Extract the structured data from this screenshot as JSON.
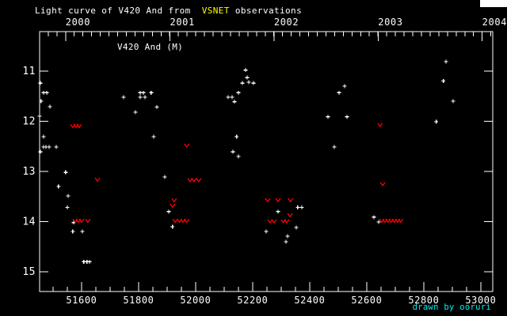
{
  "title": {
    "prefix": "Light curve of V420 And from  ",
    "highlight": "VSNET",
    "suffix": " observations",
    "text_color": "#ffffff",
    "highlight_color": "#ffff00"
  },
  "credit": {
    "text": "drawn by ooruri",
    "color": "#00eeee"
  },
  "chart_data": {
    "type": "scatter",
    "inner_label": "V420 And (M)",
    "x_axis": {
      "unit": "JD",
      "xlim": [
        51453,
        53042
      ],
      "label_ticks": [
        51600,
        51800,
        52000,
        52200,
        52400,
        52600,
        52800,
        53000
      ],
      "minor_step": 50
    },
    "top_axis": {
      "years": [
        {
          "label": "2000",
          "jd": 51544
        },
        {
          "label": "2001",
          "jd": 51910
        },
        {
          "label": "2002",
          "jd": 52275
        },
        {
          "label": "2003",
          "jd": 52640
        },
        {
          "label": "2004",
          "jd": 53005
        }
      ],
      "minor_step_days": 30.437
    },
    "y_axis": {
      "unit": "magnitude",
      "ylim": [
        10.213,
        15.394
      ],
      "label_ticks": [
        11,
        12,
        13,
        14,
        15
      ],
      "inverted_note": "fainter (larger mag) is lower"
    },
    "grid": false,
    "legend": "none",
    "series": [
      {
        "name": "observations",
        "marker": "plus",
        "color": "#ffffff",
        "points": [
          [
            51453,
            11.9
          ],
          [
            51456,
            11.24
          ],
          [
            51456,
            12.61
          ],
          [
            51458,
            11.6
          ],
          [
            51467,
            11.43
          ],
          [
            51467,
            12.31
          ],
          [
            51467,
            12.51
          ],
          [
            51475,
            12.51
          ],
          [
            51478,
            11.43
          ],
          [
            51486,
            12.51
          ],
          [
            51489,
            11.71
          ],
          [
            51511,
            12.51
          ],
          [
            51519,
            13.3
          ],
          [
            51544,
            13.02
          ],
          [
            51550,
            13.72
          ],
          [
            51553,
            13.49
          ],
          [
            51569,
            14.2
          ],
          [
            51572,
            14.02
          ],
          [
            51603,
            14.2
          ],
          [
            51608,
            14.8
          ],
          [
            51619,
            14.8
          ],
          [
            51628,
            14.8
          ],
          [
            51747,
            11.52
          ],
          [
            51789,
            11.82
          ],
          [
            51806,
            11.43
          ],
          [
            51806,
            11.52
          ],
          [
            51817,
            11.43
          ],
          [
            51822,
            11.52
          ],
          [
            51844,
            11.43
          ],
          [
            51853,
            12.31
          ],
          [
            51864,
            11.72
          ],
          [
            51892,
            13.11
          ],
          [
            51906,
            13.8
          ],
          [
            51919,
            14.1
          ],
          [
            52114,
            11.52
          ],
          [
            52128,
            11.52
          ],
          [
            52131,
            12.61
          ],
          [
            52136,
            11.61
          ],
          [
            52144,
            12.31
          ],
          [
            52150,
            11.43
          ],
          [
            52150,
            12.7
          ],
          [
            52164,
            11.24
          ],
          [
            52175,
            10.98
          ],
          [
            52181,
            11.13
          ],
          [
            52186,
            11.22
          ],
          [
            52203,
            11.24
          ],
          [
            52247,
            14.2
          ],
          [
            52289,
            13.8
          ],
          [
            52317,
            14.4
          ],
          [
            52322,
            14.29
          ],
          [
            52353,
            14.12
          ],
          [
            52358,
            13.72
          ],
          [
            52372,
            13.72
          ],
          [
            52464,
            11.91
          ],
          [
            52486,
            12.51
          ],
          [
            52503,
            11.43
          ],
          [
            52522,
            11.3
          ],
          [
            52531,
            11.91
          ],
          [
            52625,
            13.91
          ],
          [
            52642,
            14.01
          ],
          [
            52844,
            12.01
          ],
          [
            52869,
            11.2
          ],
          [
            52878,
            10.81
          ],
          [
            52903,
            11.6
          ]
        ]
      },
      {
        "name": "fainter-than upper limits",
        "marker": "v",
        "color": "#ff0000",
        "points": [
          [
            51569,
            12.09
          ],
          [
            51581,
            12.09
          ],
          [
            51592,
            12.09
          ],
          [
            51578,
            13.98
          ],
          [
            51589,
            13.98
          ],
          [
            51600,
            13.98
          ],
          [
            51622,
            13.98
          ],
          [
            51656,
            13.16
          ],
          [
            51919,
            13.68
          ],
          [
            51925,
            13.57
          ],
          [
            51928,
            13.98
          ],
          [
            51944,
            13.98
          ],
          [
            51956,
            13.98
          ],
          [
            51969,
            13.98
          ],
          [
            51969,
            12.48
          ],
          [
            51981,
            13.17
          ],
          [
            51994,
            13.17
          ],
          [
            52011,
            13.17
          ],
          [
            52253,
            13.57
          ],
          [
            52289,
            13.57
          ],
          [
            52333,
            13.57
          ],
          [
            52261,
            13.99
          ],
          [
            52275,
            13.99
          ],
          [
            52308,
            13.99
          ],
          [
            52319,
            13.99
          ],
          [
            52331,
            13.87
          ],
          [
            52647,
            12.07
          ],
          [
            52656,
            13.25
          ],
          [
            52653,
            13.98
          ],
          [
            52664,
            13.98
          ],
          [
            52675,
            13.98
          ],
          [
            52686,
            13.98
          ],
          [
            52697,
            13.98
          ],
          [
            52708,
            13.98
          ],
          [
            52719,
            13.98
          ]
        ]
      }
    ]
  }
}
